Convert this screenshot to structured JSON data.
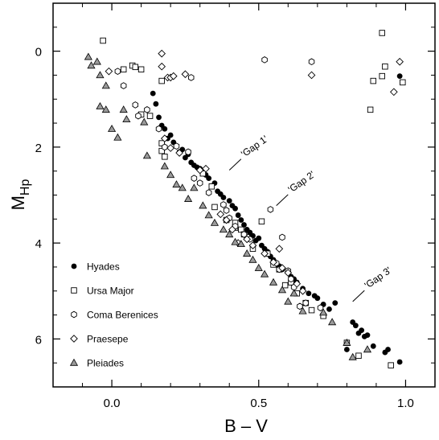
{
  "chart_data": {
    "type": "scatter",
    "xlabel": "B – V",
    "ylabel_main": "M",
    "ylabel_sub": "Hp",
    "xlim": [
      -0.2,
      1.1
    ],
    "ylim": [
      7.0,
      -1.0
    ],
    "y_inverted": true,
    "grid": false,
    "legend_position": "bottom-left",
    "x_ticks": [
      0.0,
      0.5,
      1.0
    ],
    "x_tick_labels": [
      "0.0",
      "0.5",
      "1.0"
    ],
    "x_minor_ticks": [
      -0.1,
      0.1,
      0.2,
      0.3,
      0.4,
      0.6,
      0.7,
      0.8,
      0.9
    ],
    "y_ticks": [
      0,
      2,
      4,
      6
    ],
    "y_tick_labels": [
      "0",
      "2",
      "4",
      "6"
    ],
    "y_minor_ticks": [
      -0.5,
      0.5,
      1,
      1.5,
      2.5,
      3,
      3.5,
      4.5,
      5,
      5.5,
      6.5
    ],
    "annotations": [
      {
        "text": "'Gap 1'",
        "x1": 0.4,
        "y1": 2.48,
        "x2": 0.44,
        "y2": 2.25,
        "tx": 0.45,
        "ty": 2.22,
        "angle": -35
      },
      {
        "text": "'Gap 2'",
        "x1": 0.56,
        "y1": 3.22,
        "x2": 0.6,
        "y2": 2.99,
        "tx": 0.61,
        "ty": 2.96,
        "angle": -35
      },
      {
        "text": "'Gap 3'",
        "x1": 0.82,
        "y1": 5.22,
        "x2": 0.86,
        "y2": 4.99,
        "tx": 0.87,
        "ty": 4.96,
        "angle": -35
      }
    ],
    "series": [
      {
        "name": "Hyades",
        "marker": "filled-circle",
        "points": [
          [
            0.14,
            0.88
          ],
          [
            0.15,
            1.1
          ],
          [
            0.16,
            1.38
          ],
          [
            0.17,
            1.55
          ],
          [
            0.18,
            1.62
          ],
          [
            0.19,
            1.82
          ],
          [
            0.2,
            1.75
          ],
          [
            0.21,
            1.9
          ],
          [
            0.22,
            1.98
          ],
          [
            0.23,
            2.1
          ],
          [
            0.24,
            2.05
          ],
          [
            0.25,
            2.22
          ],
          [
            0.26,
            2.15
          ],
          [
            0.27,
            2.32
          ],
          [
            0.28,
            2.38
          ],
          [
            0.29,
            2.42
          ],
          [
            0.3,
            2.45
          ],
          [
            0.31,
            2.52
          ],
          [
            0.32,
            2.58
          ],
          [
            0.33,
            2.65
          ],
          [
            0.35,
            2.75
          ],
          [
            0.36,
            2.92
          ],
          [
            0.37,
            2.98
          ],
          [
            0.38,
            3.05
          ],
          [
            0.4,
            3.12
          ],
          [
            0.41,
            3.22
          ],
          [
            0.42,
            3.28
          ],
          [
            0.43,
            3.42
          ],
          [
            0.44,
            3.52
          ],
          [
            0.45,
            3.62
          ],
          [
            0.46,
            3.72
          ],
          [
            0.47,
            3.78
          ],
          [
            0.48,
            3.85
          ],
          [
            0.49,
            3.95
          ],
          [
            0.5,
            3.9
          ],
          [
            0.51,
            4.05
          ],
          [
            0.52,
            4.12
          ],
          [
            0.53,
            4.18
          ],
          [
            0.54,
            4.28
          ],
          [
            0.55,
            4.35
          ],
          [
            0.56,
            4.42
          ],
          [
            0.57,
            4.48
          ],
          [
            0.58,
            4.55
          ],
          [
            0.6,
            4.62
          ],
          [
            0.61,
            4.7
          ],
          [
            0.62,
            4.75
          ],
          [
            0.63,
            4.82
          ],
          [
            0.65,
            4.95
          ],
          [
            0.67,
            5.05
          ],
          [
            0.69,
            5.1
          ],
          [
            0.7,
            5.15
          ],
          [
            0.72,
            5.28
          ],
          [
            0.74,
            5.38
          ],
          [
            0.76,
            5.25
          ],
          [
            0.8,
            6.22
          ],
          [
            0.82,
            5.65
          ],
          [
            0.83,
            5.72
          ],
          [
            0.84,
            5.88
          ],
          [
            0.85,
            5.82
          ],
          [
            0.86,
            5.95
          ],
          [
            0.87,
            5.92
          ],
          [
            0.89,
            6.15
          ],
          [
            0.93,
            6.28
          ],
          [
            0.94,
            6.22
          ],
          [
            0.98,
            6.48
          ],
          [
            0.98,
            0.52
          ]
        ]
      },
      {
        "name": "Ursa Major",
        "marker": "open-square",
        "points": [
          [
            -0.03,
            -0.22
          ],
          [
            0.07,
            0.3
          ],
          [
            0.08,
            0.33
          ],
          [
            0.04,
            0.38
          ],
          [
            0.1,
            0.38
          ],
          [
            0.17,
            0.62
          ],
          [
            0.1,
            1.32
          ],
          [
            0.13,
            1.35
          ],
          [
            0.17,
            1.92
          ],
          [
            0.17,
            2.08
          ],
          [
            0.18,
            2.2
          ],
          [
            0.31,
            2.55
          ],
          [
            0.34,
            2.82
          ],
          [
            0.35,
            3.25
          ],
          [
            0.39,
            3.52
          ],
          [
            0.42,
            3.58
          ],
          [
            0.42,
            3.68
          ],
          [
            0.44,
            3.72
          ],
          [
            0.45,
            3.82
          ],
          [
            0.46,
            3.88
          ],
          [
            0.48,
            4.12
          ],
          [
            0.51,
            3.55
          ],
          [
            0.53,
            4.22
          ],
          [
            0.55,
            4.45
          ],
          [
            0.57,
            4.55
          ],
          [
            0.59,
            4.88
          ],
          [
            0.61,
            4.82
          ],
          [
            0.63,
            5.05
          ],
          [
            0.66,
            5.25
          ],
          [
            0.68,
            5.4
          ],
          [
            0.72,
            5.52
          ],
          [
            0.8,
            6.08
          ],
          [
            0.84,
            6.35
          ],
          [
            0.95,
            6.55
          ],
          [
            0.88,
            1.22
          ],
          [
            0.89,
            0.62
          ],
          [
            0.92,
            0.52
          ],
          [
            0.92,
            -0.38
          ],
          [
            0.93,
            0.32
          ],
          [
            0.99,
            0.65
          ]
        ]
      },
      {
        "name": "Coma Berenices",
        "marker": "open-hexagon",
        "points": [
          [
            0.02,
            0.42
          ],
          [
            0.04,
            0.72
          ],
          [
            0.08,
            1.12
          ],
          [
            0.09,
            1.35
          ],
          [
            0.12,
            1.22
          ],
          [
            0.16,
            1.62
          ],
          [
            0.18,
            2.0
          ],
          [
            0.22,
            1.98
          ],
          [
            0.26,
            2.1
          ],
          [
            0.28,
            2.65
          ],
          [
            0.27,
            0.55
          ],
          [
            0.3,
            2.75
          ],
          [
            0.33,
            2.95
          ],
          [
            0.38,
            3.2
          ],
          [
            0.39,
            3.32
          ],
          [
            0.4,
            3.48
          ],
          [
            0.42,
            3.65
          ],
          [
            0.45,
            3.82
          ],
          [
            0.47,
            3.92
          ],
          [
            0.52,
            0.18
          ],
          [
            0.54,
            3.3
          ],
          [
            0.56,
            4.42
          ],
          [
            0.57,
            4.55
          ],
          [
            0.58,
            3.88
          ],
          [
            0.6,
            4.58
          ],
          [
            0.61,
            4.75
          ],
          [
            0.62,
            4.92
          ],
          [
            0.64,
            5.32
          ],
          [
            0.66,
            5.25
          ],
          [
            0.68,
            0.22
          ],
          [
            0.71,
            5.35
          ]
        ]
      },
      {
        "name": "Praesepe",
        "marker": "open-diamond",
        "points": [
          [
            -0.01,
            0.42
          ],
          [
            0.17,
            0.05
          ],
          [
            0.17,
            0.32
          ],
          [
            0.19,
            0.55
          ],
          [
            0.2,
            0.55
          ],
          [
            0.21,
            0.52
          ],
          [
            0.25,
            0.48
          ],
          [
            0.18,
            1.82
          ],
          [
            0.2,
            2.02
          ],
          [
            0.23,
            2.12
          ],
          [
            0.3,
            2.48
          ],
          [
            0.32,
            2.45
          ],
          [
            0.37,
            3.4
          ],
          [
            0.39,
            3.52
          ],
          [
            0.41,
            3.72
          ],
          [
            0.43,
            4.0
          ],
          [
            0.46,
            3.92
          ],
          [
            0.48,
            4.05
          ],
          [
            0.52,
            4.22
          ],
          [
            0.55,
            4.4
          ],
          [
            0.57,
            4.12
          ],
          [
            0.58,
            4.52
          ],
          [
            0.6,
            4.62
          ],
          [
            0.63,
            4.85
          ],
          [
            0.65,
            5.0
          ],
          [
            0.68,
            0.5
          ],
          [
            0.96,
            0.85
          ],
          [
            0.98,
            0.22
          ]
        ]
      },
      {
        "name": "Pleiades",
        "marker": "filled-triangle",
        "points": [
          [
            -0.08,
            0.12
          ],
          [
            -0.07,
            0.3
          ],
          [
            -0.05,
            0.22
          ],
          [
            -0.04,
            0.5
          ],
          [
            -0.02,
            0.72
          ],
          [
            -0.04,
            1.15
          ],
          [
            -0.02,
            1.22
          ],
          [
            0.0,
            1.62
          ],
          [
            0.02,
            1.8
          ],
          [
            0.04,
            1.22
          ],
          [
            0.05,
            1.42
          ],
          [
            0.11,
            1.48
          ],
          [
            0.12,
            2.18
          ],
          [
            0.18,
            2.4
          ],
          [
            0.2,
            2.58
          ],
          [
            0.22,
            2.78
          ],
          [
            0.24,
            2.85
          ],
          [
            0.26,
            3.08
          ],
          [
            0.28,
            2.85
          ],
          [
            0.31,
            3.22
          ],
          [
            0.33,
            3.42
          ],
          [
            0.35,
            3.58
          ],
          [
            0.38,
            3.72
          ],
          [
            0.4,
            3.82
          ],
          [
            0.42,
            3.98
          ],
          [
            0.44,
            4.02
          ],
          [
            0.46,
            4.22
          ],
          [
            0.48,
            4.35
          ],
          [
            0.5,
            4.52
          ],
          [
            0.52,
            4.65
          ],
          [
            0.55,
            4.82
          ],
          [
            0.58,
            4.98
          ],
          [
            0.6,
            5.22
          ],
          [
            0.62,
            5.05
          ],
          [
            0.65,
            5.42
          ],
          [
            0.72,
            5.45
          ],
          [
            0.75,
            5.65
          ],
          [
            0.8,
            6.08
          ],
          [
            0.82,
            6.38
          ],
          [
            0.87,
            6.22
          ]
        ]
      }
    ]
  }
}
